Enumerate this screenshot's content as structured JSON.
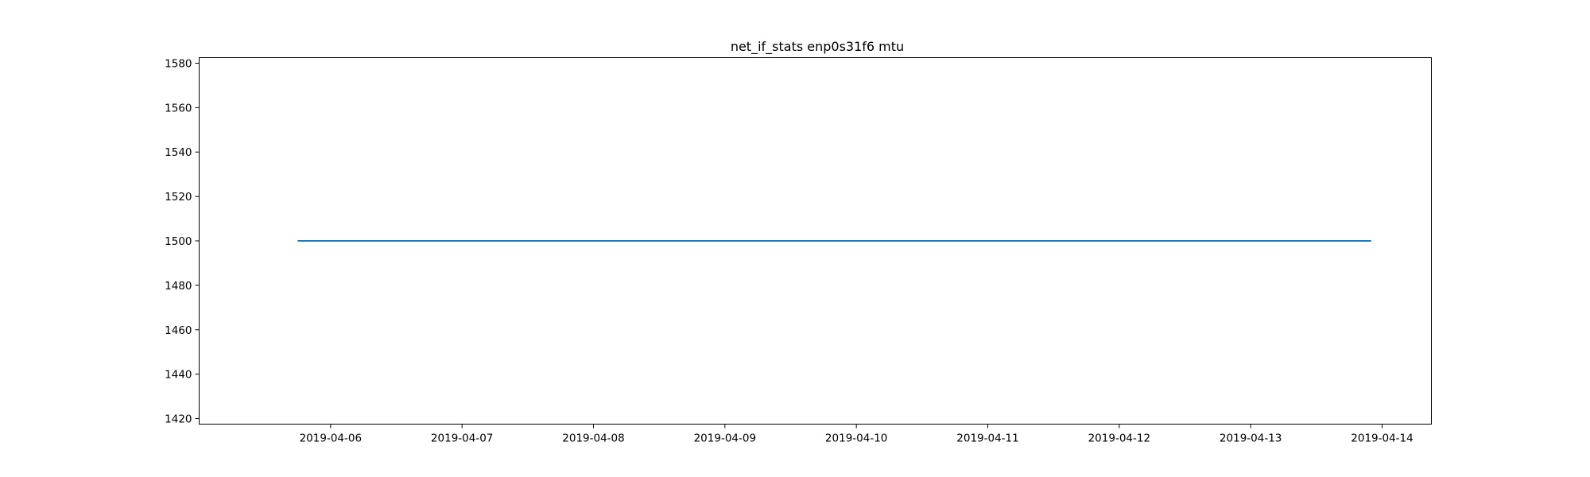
{
  "chart_data": {
    "type": "line",
    "title": "net_if_stats enp0s31f6 mtu",
    "xlabel": "",
    "ylabel": "",
    "grid": false,
    "x_ticks": [
      "2019-04-06",
      "2019-04-07",
      "2019-04-08",
      "2019-04-09",
      "2019-04-10",
      "2019-04-11",
      "2019-04-12",
      "2019-04-13",
      "2019-04-14"
    ],
    "y_ticks": [
      1420,
      1440,
      1460,
      1480,
      1500,
      1520,
      1540,
      1560,
      1580
    ],
    "xlim": [
      "2019-04-05 00:00",
      "2019-04-14 09:00"
    ],
    "ylim": [
      1417.5,
      1582.5
    ],
    "series": [
      {
        "color": "#1f77b4",
        "points": [
          {
            "x": "2019-04-05 18:00",
            "y": 1500
          },
          {
            "x": "2019-04-13 22:00",
            "y": 1500
          }
        ]
      }
    ]
  }
}
